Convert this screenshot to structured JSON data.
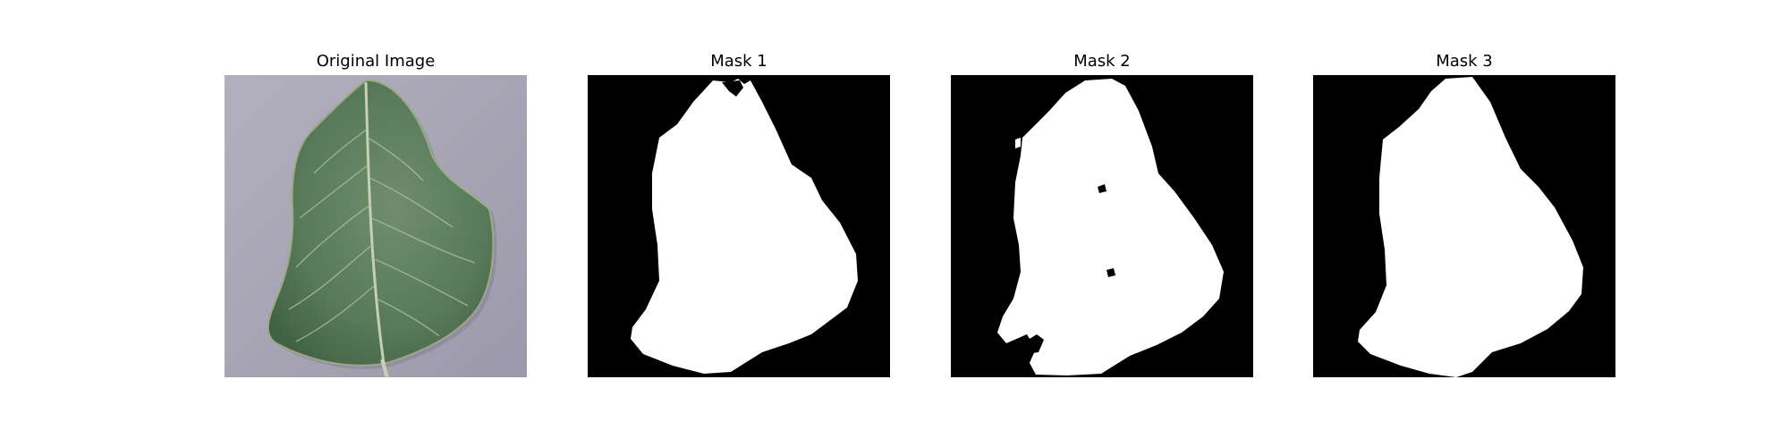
{
  "figure": {
    "panels": [
      {
        "title": "Original Image",
        "kind": "photo"
      },
      {
        "title": "Mask 1",
        "kind": "mask"
      },
      {
        "title": "Mask 2",
        "kind": "mask"
      },
      {
        "title": "Mask 3",
        "kind": "mask"
      }
    ]
  },
  "colors": {
    "background": "#ffffff",
    "photo_backdrop": "#a6a3b3",
    "leaf_green": "#5a7a5a",
    "leaf_vein": "#b9c7a8",
    "mask_background": "#000000",
    "mask_foreground": "#ffffff"
  }
}
